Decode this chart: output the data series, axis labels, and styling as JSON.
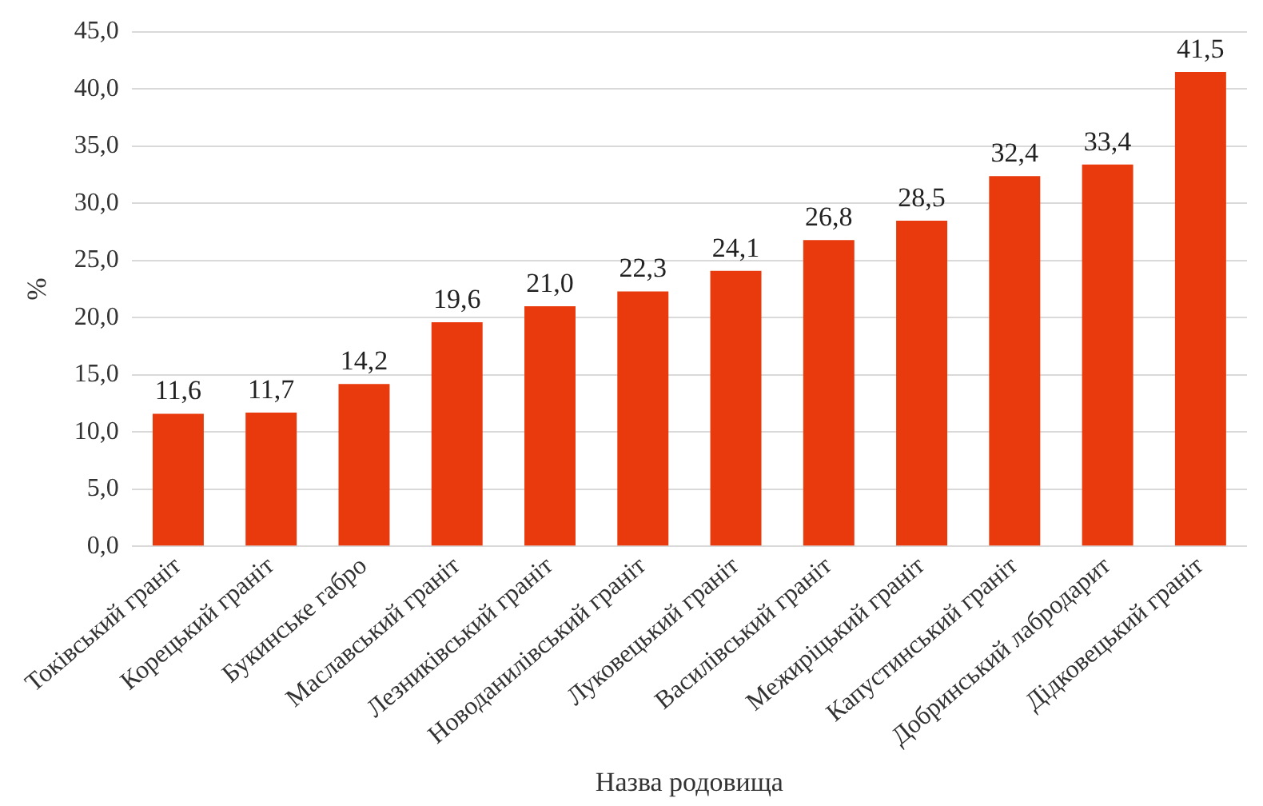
{
  "chart_data": {
    "type": "bar",
    "xlabel": "Назва родовища",
    "ylabel": "%",
    "categories": [
      "Токівський граніт",
      "Корецький граніт",
      "Букинське габро",
      "Маславський граніт",
      "Лезниківський граніт",
      "Новоданилівський граніт",
      "Луковецький граніт",
      "Василівський граніт",
      "Межиріцький граніт",
      "Капустинський граніт",
      "Добринський лабродарит",
      "Дідковецький граніт"
    ],
    "values": [
      11.6,
      11.7,
      14.2,
      19.6,
      21.0,
      22.3,
      24.1,
      26.8,
      28.5,
      32.4,
      33.4,
      41.5
    ],
    "value_labels": [
      "11,6",
      "11,7",
      "14,2",
      "19,6",
      "21,0",
      "22,3",
      "24,1",
      "26,8",
      "28,5",
      "32,4",
      "33,4",
      "41,5"
    ],
    "color": "#e83a0c",
    "ylim": [
      0,
      45
    ],
    "yticks": [
      {
        "value": 0,
        "label": "0,0"
      },
      {
        "value": 5,
        "label": "5,0"
      },
      {
        "value": 10,
        "label": "10,0"
      },
      {
        "value": 15,
        "label": "15,0"
      },
      {
        "value": 20,
        "label": "20,0"
      },
      {
        "value": 25,
        "label": "25,0"
      },
      {
        "value": 30,
        "label": "30,0"
      },
      {
        "value": 35,
        "label": "35,0"
      },
      {
        "value": 40,
        "label": "40,0"
      },
      {
        "value": 45,
        "label": "45,0"
      }
    ],
    "grid": "y",
    "legend": false
  }
}
